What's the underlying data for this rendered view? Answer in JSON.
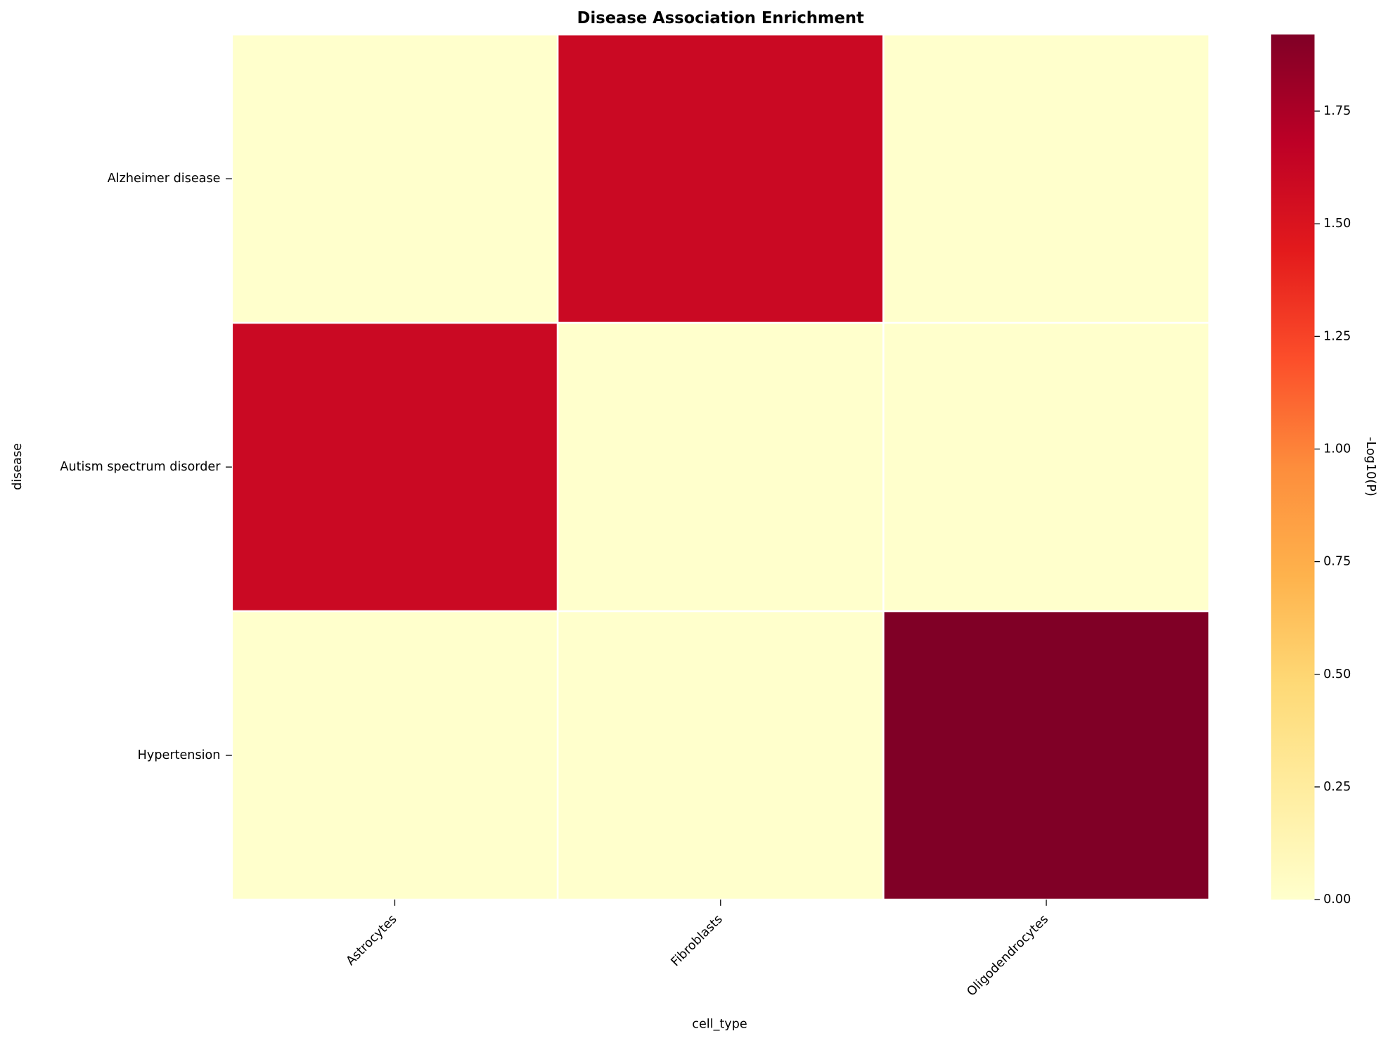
{
  "chart_data": {
    "type": "heatmap",
    "title": "Disease Association Enrichment",
    "x_label": "cell_type",
    "y_label": "disease",
    "categories": [
      "Astrocytes",
      "Fibroblasts",
      "Oligodendrocytes"
    ],
    "rows": [
      "Alzheimer disease",
      "Autism spectrum disorder",
      "Hypertension"
    ],
    "values": [
      [
        0,
        1.6,
        0
      ],
      [
        1.6,
        0,
        0
      ],
      [
        0,
        0,
        1.92
      ]
    ],
    "colormap": "YlOrRd",
    "colorbar_label": "-Log10(P)",
    "clim": [
      0,
      1.92
    ],
    "cticks": [
      {
        "value": 0,
        "label": "0.00"
      },
      {
        "value": 0.25,
        "label": "0.25"
      },
      {
        "value": 0.5,
        "label": "0.50"
      },
      {
        "value": 0.75,
        "label": "0.75"
      },
      {
        "value": 1,
        "label": "1.00"
      },
      {
        "value": 1.25,
        "label": "1.25"
      },
      {
        "value": 1.5,
        "label": "1.50"
      },
      {
        "value": 1.75,
        "label": "1.75"
      }
    ]
  }
}
